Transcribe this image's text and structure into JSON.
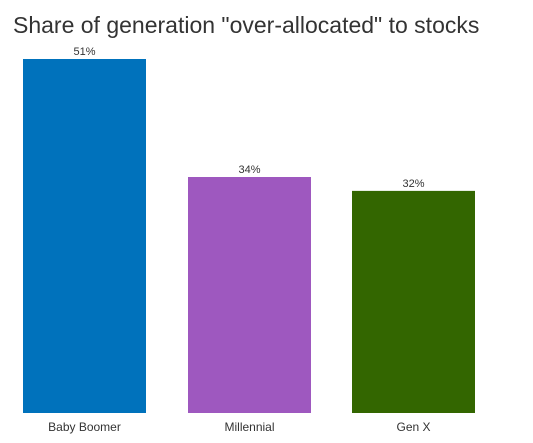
{
  "chart_data": {
    "type": "bar",
    "title": "Share of generation \"over-allocated\" to stocks",
    "categories": [
      "Baby Boomer",
      "Millennial",
      "Gen X"
    ],
    "values": [
      51,
      34,
      32
    ],
    "value_labels": [
      "51%",
      "34%",
      "32%"
    ],
    "colors": [
      "#0072BC",
      "#9E58BF",
      "#336600"
    ],
    "ylim": [
      0,
      51
    ],
    "xlabel": "",
    "ylabel": "",
    "grid": false,
    "legend": "none"
  }
}
